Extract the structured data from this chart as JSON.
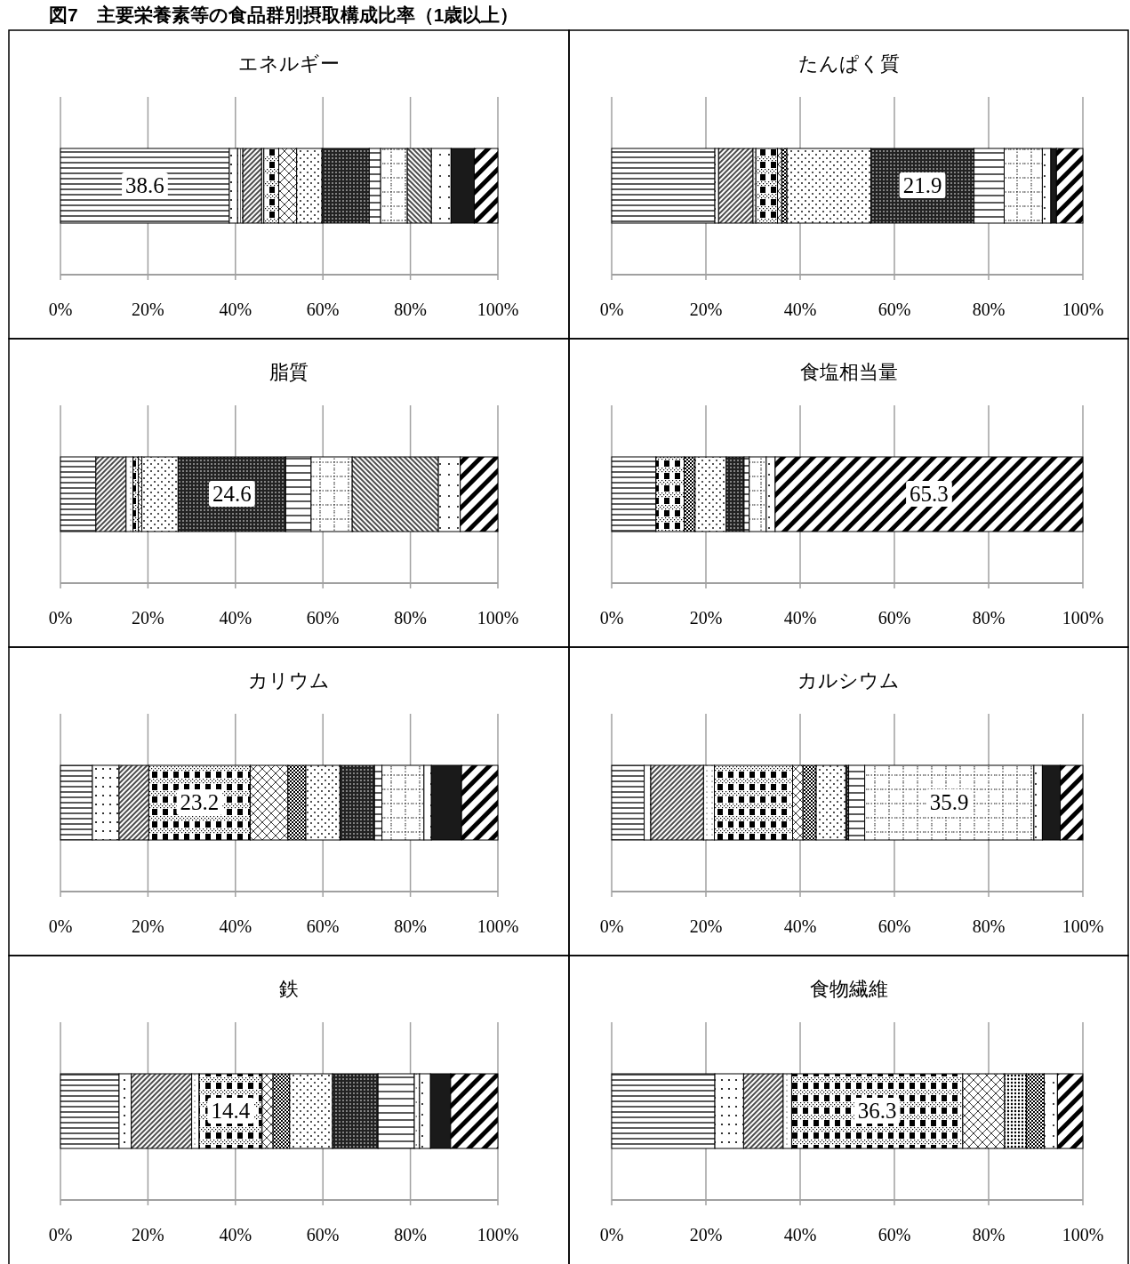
{
  "chart_data": [
    {
      "type": "other",
      "title": "図7　主要栄養素等の食品群別摂取構成比率（1歳以上）"
    },
    {
      "type": "bar",
      "orientation": "horizontal",
      "stacked": true,
      "title": "エネルギー",
      "categories": [
        null
      ],
      "series": [
        {
          "values": [
            38.6
          ],
          "value_labels": [
            "38.6"
          ]
        },
        {
          "values": [
            1.9
          ]
        },
        {
          "values": [
            1.2
          ]
        },
        {
          "values": [
            4.3
          ]
        },
        {
          "values": [
            0.5
          ]
        },
        {
          "values": [
            3.4
          ]
        },
        {
          "values": [
            4.1
          ]
        },
        {
          "values": [
            null
          ]
        },
        {
          "values": [
            null
          ]
        },
        {
          "values": [
            5.8
          ]
        },
        {
          "values": [
            10.8
          ]
        },
        {
          "values": [
            2.6
          ]
        },
        {
          "values": [
            6.1
          ]
        },
        {
          "values": [
            5.5
          ]
        },
        {
          "values": [
            4.5
          ]
        },
        {
          "values": [
            5.3
          ]
        },
        {
          "values": [
            5.4
          ]
        }
      ],
      "xlim": [
        0,
        100
      ],
      "xticks": [
        {
          "value": 0,
          "label": "0%"
        },
        {
          "value": 20,
          "label": "20%"
        },
        {
          "value": 40,
          "label": "40%"
        },
        {
          "value": 60,
          "label": "60%"
        },
        {
          "value": 80,
          "label": "80%"
        },
        {
          "value": 100,
          "label": "100%"
        }
      ],
      "grid": "x"
    },
    {
      "type": "bar",
      "orientation": "horizontal",
      "stacked": true,
      "title": "たんぱく質",
      "categories": [
        null
      ],
      "series": [
        {
          "values": [
            21.9
          ]
        },
        {
          "values": [
            0.8
          ]
        },
        {
          "values": [
            null
          ]
        },
        {
          "values": [
            7.3
          ]
        },
        {
          "values": [
            0.6
          ]
        },
        {
          "values": [
            4.6
          ]
        },
        {
          "values": [
            0.9
          ]
        },
        {
          "values": [
            null
          ]
        },
        {
          "values": [
            1.1
          ]
        },
        {
          "values": [
            17.8
          ]
        },
        {
          "values": [
            21.9
          ],
          "value_labels": [
            "21.9"
          ]
        },
        {
          "values": [
            6.4
          ]
        },
        {
          "values": [
            8.1
          ]
        },
        {
          "values": [
            null
          ]
        },
        {
          "values": [
            1.8
          ]
        },
        {
          "values": [
            1.2
          ]
        },
        {
          "values": [
            5.6
          ]
        }
      ],
      "xlim": [
        0,
        100
      ],
      "xticks": [
        {
          "value": 0,
          "label": "0%"
        },
        {
          "value": 20,
          "label": "20%"
        },
        {
          "value": 40,
          "label": "40%"
        },
        {
          "value": 60,
          "label": "60%"
        },
        {
          "value": 80,
          "label": "80%"
        },
        {
          "value": 100,
          "label": "100%"
        }
      ],
      "grid": "x"
    },
    {
      "type": "bar",
      "orientation": "horizontal",
      "stacked": true,
      "title": "脂質",
      "categories": [
        null
      ],
      "series": [
        {
          "values": [
            8.1
          ]
        },
        {
          "values": [
            null
          ]
        },
        {
          "values": [
            null
          ]
        },
        {
          "values": [
            6.9
          ]
        },
        {
          "values": [
            1.6
          ]
        },
        {
          "values": [
            1.2
          ]
        },
        {
          "values": [
            0.8
          ]
        },
        {
          "values": [
            null
          ]
        },
        {
          "values": [
            null
          ]
        },
        {
          "values": [
            8.3
          ]
        },
        {
          "values": [
            24.6
          ],
          "value_labels": [
            "24.6"
          ]
        },
        {
          "values": [
            5.8
          ]
        },
        {
          "values": [
            9.4
          ]
        },
        {
          "values": [
            19.7
          ]
        },
        {
          "values": [
            5.0
          ]
        },
        {
          "values": [
            null
          ]
        },
        {
          "values": [
            8.6
          ]
        }
      ],
      "xlim": [
        0,
        100
      ],
      "xticks": [
        {
          "value": 0,
          "label": "0%"
        },
        {
          "value": 20,
          "label": "20%"
        },
        {
          "value": 40,
          "label": "40%"
        },
        {
          "value": 60,
          "label": "60%"
        },
        {
          "value": 80,
          "label": "80%"
        },
        {
          "value": 100,
          "label": "100%"
        }
      ],
      "grid": "x"
    },
    {
      "type": "bar",
      "orientation": "horizontal",
      "stacked": true,
      "title": "食塩相当量",
      "categories": [
        null
      ],
      "series": [
        {
          "values": [
            9.4
          ]
        },
        {
          "values": [
            null
          ]
        },
        {
          "values": [
            null
          ]
        },
        {
          "values": [
            null
          ]
        },
        {
          "values": [
            null
          ]
        },
        {
          "values": [
            6.0
          ]
        },
        {
          "values": [
            null
          ]
        },
        {
          "values": [
            null
          ]
        },
        {
          "values": [
            2.3
          ]
        },
        {
          "values": [
            6.6
          ]
        },
        {
          "values": [
            3.8
          ]
        },
        {
          "values": [
            1.1
          ]
        },
        {
          "values": [
            3.6
          ]
        },
        {
          "values": [
            null
          ]
        },
        {
          "values": [
            1.9
          ]
        },
        {
          "values": [
            null
          ]
        },
        {
          "values": [
            65.3
          ],
          "value_labels": [
            "65.3"
          ]
        }
      ],
      "xlim": [
        0,
        100
      ],
      "xticks": [
        {
          "value": 0,
          "label": "0%"
        },
        {
          "value": 20,
          "label": "20%"
        },
        {
          "value": 40,
          "label": "40%"
        },
        {
          "value": 60,
          "label": "60%"
        },
        {
          "value": 80,
          "label": "80%"
        },
        {
          "value": 100,
          "label": "100%"
        }
      ],
      "grid": "x"
    },
    {
      "type": "bar",
      "orientation": "horizontal",
      "stacked": true,
      "title": "カリウム",
      "categories": [
        null
      ],
      "series": [
        {
          "values": [
            7.3
          ]
        },
        {
          "values": [
            6.1
          ]
        },
        {
          "values": [
            null
          ]
        },
        {
          "values": [
            6.8
          ]
        },
        {
          "values": [
            null
          ]
        },
        {
          "values": [
            23.2
          ],
          "value_labels": [
            "23.2"
          ]
        },
        {
          "values": [
            8.6
          ]
        },
        {
          "values": [
            null
          ]
        },
        {
          "values": [
            4.1
          ]
        },
        {
          "values": [
            7.8
          ]
        },
        {
          "values": [
            7.9
          ]
        },
        {
          "values": [
            1.7
          ]
        },
        {
          "values": [
            9.6
          ]
        },
        {
          "values": [
            null
          ]
        },
        {
          "values": [
            1.7
          ]
        },
        {
          "values": [
            6.9
          ]
        },
        {
          "values": [
            8.3
          ]
        }
      ],
      "xlim": [
        0,
        100
      ],
      "xticks": [
        {
          "value": 0,
          "label": "0%"
        },
        {
          "value": 20,
          "label": "20%"
        },
        {
          "value": 40,
          "label": "40%"
        },
        {
          "value": 60,
          "label": "60%"
        },
        {
          "value": 80,
          "label": "80%"
        },
        {
          "value": 100,
          "label": "100%"
        }
      ],
      "grid": "x"
    },
    {
      "type": "bar",
      "orientation": "horizontal",
      "stacked": true,
      "title": "カルシウム",
      "categories": [
        null
      ],
      "series": [
        {
          "values": [
            6.9
          ]
        },
        {
          "values": [
            1.4
          ]
        },
        {
          "values": [
            null
          ]
        },
        {
          "values": [
            11.2
          ]
        },
        {
          "values": [
            2.3
          ]
        },
        {
          "values": [
            16.6
          ]
        },
        {
          "values": [
            2.2
          ]
        },
        {
          "values": [
            null
          ]
        },
        {
          "values": [
            2.8
          ]
        },
        {
          "values": [
            6.3
          ]
        },
        {
          "values": [
            0.6
          ]
        },
        {
          "values": [
            3.4
          ]
        },
        {
          "values": [
            35.9
          ],
          "value_labels": [
            "35.9"
          ]
        },
        {
          "values": [
            null
          ]
        },
        {
          "values": [
            1.8
          ]
        },
        {
          "values": [
            3.8
          ]
        },
        {
          "values": [
            4.8
          ]
        }
      ],
      "xlim": [
        0,
        100
      ],
      "xticks": [
        {
          "value": 0,
          "label": "0%"
        },
        {
          "value": 20,
          "label": "20%"
        },
        {
          "value": 40,
          "label": "40%"
        },
        {
          "value": 60,
          "label": "60%"
        },
        {
          "value": 80,
          "label": "80%"
        },
        {
          "value": 100,
          "label": "100%"
        }
      ],
      "grid": "x"
    },
    {
      "type": "bar",
      "orientation": "horizontal",
      "stacked": true,
      "title": "鉄",
      "categories": [
        null
      ],
      "series": [
        {
          "values": [
            13.4
          ]
        },
        {
          "values": [
            2.8
          ]
        },
        {
          "values": [
            null
          ]
        },
        {
          "values": [
            13.8
          ]
        },
        {
          "values": [
            1.7
          ]
        },
        {
          "values": [
            14.4
          ],
          "value_labels": [
            "14.4"
          ]
        },
        {
          "values": [
            2.5
          ]
        },
        {
          "values": [
            null
          ]
        },
        {
          "values": [
            3.8
          ]
        },
        {
          "values": [
            9.8
          ]
        },
        {
          "values": [
            10.4
          ]
        },
        {
          "values": [
            8.3
          ]
        },
        {
          "values": [
            1.2
          ]
        },
        {
          "values": [
            null
          ]
        },
        {
          "values": [
            2.5
          ]
        },
        {
          "values": [
            4.6
          ]
        },
        {
          "values": [
            10.8
          ]
        }
      ],
      "xlim": [
        0,
        100
      ],
      "xticks": [
        {
          "value": 0,
          "label": "0%"
        },
        {
          "value": 20,
          "label": "20%"
        },
        {
          "value": 40,
          "label": "40%"
        },
        {
          "value": 60,
          "label": "60%"
        },
        {
          "value": 80,
          "label": "80%"
        },
        {
          "value": 100,
          "label": "100%"
        }
      ],
      "grid": "x"
    },
    {
      "type": "bar",
      "orientation": "horizontal",
      "stacked": true,
      "title": "食物繊維",
      "categories": [
        null
      ],
      "series": [
        {
          "values": [
            21.9
          ]
        },
        {
          "values": [
            6.1
          ]
        },
        {
          "values": [
            null
          ]
        },
        {
          "values": [
            8.4
          ]
        },
        {
          "values": [
            1.8
          ]
        },
        {
          "values": [
            36.3
          ],
          "value_labels": [
            "36.3"
          ]
        },
        {
          "values": [
            8.9
          ]
        },
        {
          "values": [
            4.6
          ]
        },
        {
          "values": [
            3.8
          ]
        },
        {
          "values": [
            null
          ]
        },
        {
          "values": [
            null
          ]
        },
        {
          "values": [
            null
          ]
        },
        {
          "values": [
            null
          ]
        },
        {
          "values": [
            null
          ]
        },
        {
          "values": [
            2.8
          ]
        },
        {
          "values": [
            null
          ]
        },
        {
          "values": [
            5.4
          ]
        }
      ],
      "xlim": [
        0,
        100
      ],
      "xticks": [
        {
          "value": 0,
          "label": "0%"
        },
        {
          "value": 20,
          "label": "20%"
        },
        {
          "value": 40,
          "label": "40%"
        },
        {
          "value": 60,
          "label": "60%"
        },
        {
          "value": 80,
          "label": "80%"
        },
        {
          "value": 100,
          "label": "100%"
        }
      ],
      "grid": "x"
    }
  ]
}
